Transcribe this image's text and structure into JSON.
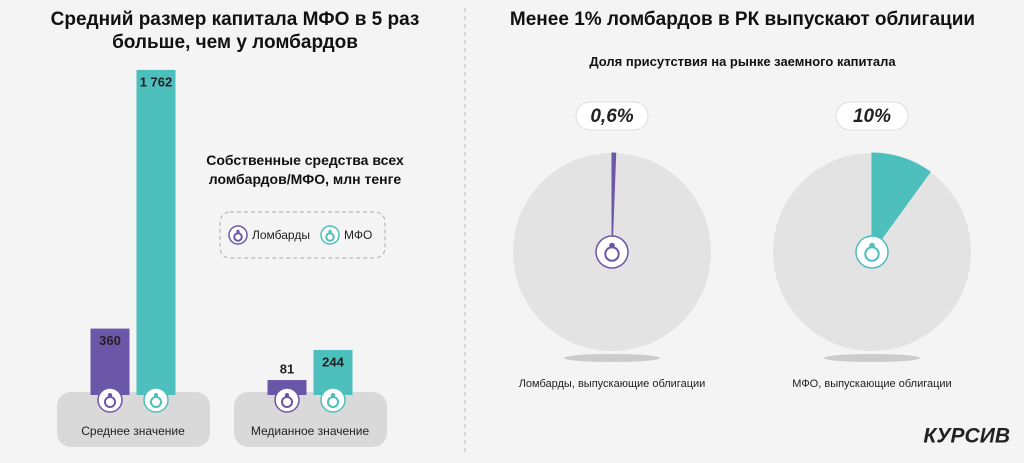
{
  "chart_data": [
    {
      "type": "bar",
      "title": "Средний размер капитала МФО в 5 раз больше, чем у ломбардов",
      "subtitle": "Собственные средства всех ломбардов/МФО, млн тенге",
      "categories": [
        "Среднее значение",
        "Медианное значение"
      ],
      "series": [
        {
          "name": "Ломбарды",
          "color": "#6b57a8",
          "values": [
            360,
            81
          ]
        },
        {
          "name": "МФО",
          "color": "#4dbfbd",
          "values": [
            1762,
            244
          ],
          "value_labels": [
            "1 762",
            "244"
          ]
        }
      ]
    },
    {
      "type": "pie",
      "title": "Менее 1% ломбардов в РК выпускают облигации",
      "subtitle": "Доля присутствия на рынке заемного капитала",
      "categories": [
        "Ломбарды, выпускающие облигации",
        "МФО, выпускающие облигации"
      ],
      "values": [
        0.6,
        10
      ],
      "value_labels": [
        "0,6%",
        "10%"
      ],
      "colors": [
        "#6b57a8",
        "#4dbfbd"
      ]
    }
  ],
  "brand": "КУРСИВ"
}
